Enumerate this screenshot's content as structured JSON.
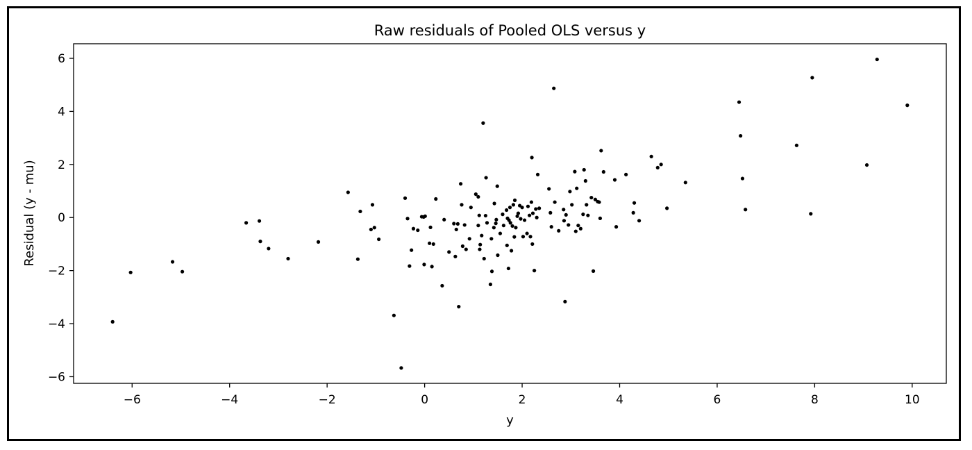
{
  "chart_data": {
    "type": "scatter",
    "title": "Raw residuals of Pooled OLS versus y",
    "xlabel": "y",
    "ylabel": "Residual (y - mu)",
    "xlim": [
      -7.2,
      10.7
    ],
    "ylim": [
      -6.25,
      6.55
    ],
    "xticks": [
      -6,
      -4,
      -2,
      0,
      2,
      4,
      6,
      8,
      10
    ],
    "xtick_labels": [
      "−6",
      "−4",
      "−2",
      "0",
      "2",
      "4",
      "6",
      "8",
      "10"
    ],
    "yticks": [
      -6,
      -4,
      -2,
      0,
      2,
      4,
      6
    ],
    "ytick_labels": [
      "−6",
      "−4",
      "−2",
      "0",
      "2",
      "4",
      "6"
    ],
    "grid": false,
    "marker_color": "#000000",
    "points": [
      [
        -6.4,
        -3.93
      ],
      [
        -6.03,
        -2.07
      ],
      [
        -5.17,
        -1.67
      ],
      [
        -4.97,
        -2.04
      ],
      [
        -3.66,
        -0.2
      ],
      [
        -3.39,
        -0.13
      ],
      [
        -3.37,
        -0.9
      ],
      [
        -3.2,
        -1.17
      ],
      [
        -2.8,
        -1.55
      ],
      [
        -2.18,
        -0.92
      ],
      [
        -1.57,
        0.95
      ],
      [
        -1.37,
        -1.57
      ],
      [
        -1.32,
        0.23
      ],
      [
        -1.07,
        0.48
      ],
      [
        -1.1,
        -0.45
      ],
      [
        -1.03,
        -0.38
      ],
      [
        -0.94,
        -0.82
      ],
      [
        -0.63,
        -3.69
      ],
      [
        -0.48,
        -5.67
      ],
      [
        -0.4,
        0.73
      ],
      [
        -0.35,
        -0.04
      ],
      [
        -0.31,
        -1.83
      ],
      [
        -0.27,
        -1.23
      ],
      [
        -0.23,
        -0.42
      ],
      [
        -0.14,
        -0.48
      ],
      [
        -0.06,
        0.03
      ],
      [
        -0.02,
        0.02
      ],
      [
        0.01,
        0.05
      ],
      [
        -0.01,
        -1.77
      ],
      [
        0.1,
        -0.97
      ],
      [
        0.15,
        -1.85
      ],
      [
        0.12,
        -0.37
      ],
      [
        0.18,
        -1.0
      ],
      [
        0.23,
        0.7
      ],
      [
        0.36,
        -2.57
      ],
      [
        0.4,
        -0.08
      ],
      [
        0.5,
        -1.3
      ],
      [
        0.6,
        -0.23
      ],
      [
        0.63,
        -1.47
      ],
      [
        0.65,
        -0.45
      ],
      [
        0.68,
        -0.24
      ],
      [
        0.7,
        -3.36
      ],
      [
        0.74,
        1.27
      ],
      [
        0.76,
        0.48
      ],
      [
        0.78,
        -1.08
      ],
      [
        0.82,
        -0.28
      ],
      [
        0.85,
        -1.2
      ],
      [
        0.92,
        -0.8
      ],
      [
        0.95,
        0.38
      ],
      [
        1.05,
        0.88
      ],
      [
        1.1,
        0.78
      ],
      [
        1.1,
        -0.3
      ],
      [
        1.12,
        0.08
      ],
      [
        1.13,
        -1.2
      ],
      [
        1.14,
        -1.02
      ],
      [
        1.17,
        -0.68
      ],
      [
        1.2,
        3.56
      ],
      [
        1.22,
        -1.55
      ],
      [
        1.25,
        0.07
      ],
      [
        1.26,
        1.5
      ],
      [
        1.28,
        -0.2
      ],
      [
        1.35,
        -2.52
      ],
      [
        1.37,
        -0.8
      ],
      [
        1.38,
        -2.03
      ],
      [
        1.42,
        -0.38
      ],
      [
        1.43,
        0.53
      ],
      [
        1.46,
        -0.22
      ],
      [
        1.47,
        -0.08
      ],
      [
        1.49,
        1.18
      ],
      [
        1.5,
        -1.42
      ],
      [
        1.55,
        -0.6
      ],
      [
        1.6,
        0.12
      ],
      [
        1.62,
        -0.3
      ],
      [
        1.68,
        0.28
      ],
      [
        1.69,
        -1.05
      ],
      [
        1.7,
        -0.03
      ],
      [
        1.72,
        -1.92
      ],
      [
        1.73,
        -0.1
      ],
      [
        1.75,
        0.38
      ],
      [
        1.76,
        -0.2
      ],
      [
        1.78,
        -1.25
      ],
      [
        1.8,
        -0.32
      ],
      [
        1.82,
        0.48
      ],
      [
        1.84,
        -0.73
      ],
      [
        1.85,
        0.65
      ],
      [
        1.87,
        -0.38
      ],
      [
        1.9,
        0.05
      ],
      [
        1.92,
        0.16
      ],
      [
        1.95,
        0.45
      ],
      [
        1.97,
        -0.05
      ],
      [
        2.0,
        0.38
      ],
      [
        2.02,
        -0.72
      ],
      [
        2.05,
        -0.1
      ],
      [
        2.1,
        -0.6
      ],
      [
        2.12,
        0.42
      ],
      [
        2.15,
        0.08
      ],
      [
        2.17,
        -0.72
      ],
      [
        2.19,
        0.58
      ],
      [
        2.2,
        2.26
      ],
      [
        2.21,
        -1.0
      ],
      [
        2.22,
        0.16
      ],
      [
        2.25,
        -2.0
      ],
      [
        2.28,
        0.32
      ],
      [
        2.3,
        0.0
      ],
      [
        2.32,
        1.62
      ],
      [
        2.35,
        0.35
      ],
      [
        2.55,
        1.08
      ],
      [
        2.58,
        0.18
      ],
      [
        2.6,
        -0.35
      ],
      [
        2.65,
        4.87
      ],
      [
        2.67,
        0.58
      ],
      [
        2.75,
        -0.5
      ],
      [
        2.85,
        0.3
      ],
      [
        2.86,
        -0.12
      ],
      [
        2.88,
        -3.17
      ],
      [
        2.9,
        0.1
      ],
      [
        2.95,
        -0.28
      ],
      [
        2.98,
        0.98
      ],
      [
        3.02,
        0.48
      ],
      [
        3.08,
        1.73
      ],
      [
        3.1,
        -0.52
      ],
      [
        3.12,
        1.1
      ],
      [
        3.15,
        -0.3
      ],
      [
        3.2,
        -0.42
      ],
      [
        3.25,
        0.12
      ],
      [
        3.27,
        1.8
      ],
      [
        3.3,
        1.38
      ],
      [
        3.32,
        0.48
      ],
      [
        3.35,
        0.08
      ],
      [
        3.42,
        0.75
      ],
      [
        3.46,
        -2.02
      ],
      [
        3.5,
        0.68
      ],
      [
        3.55,
        0.6
      ],
      [
        3.58,
        0.58
      ],
      [
        3.6,
        -0.03
      ],
      [
        3.62,
        2.52
      ],
      [
        3.67,
        1.72
      ],
      [
        3.9,
        1.42
      ],
      [
        3.93,
        -0.35
      ],
      [
        4.13,
        1.62
      ],
      [
        4.28,
        0.18
      ],
      [
        4.3,
        0.55
      ],
      [
        4.4,
        -0.12
      ],
      [
        4.65,
        2.3
      ],
      [
        4.78,
        1.88
      ],
      [
        4.85,
        2.0
      ],
      [
        4.97,
        0.35
      ],
      [
        5.35,
        1.32
      ],
      [
        6.45,
        4.35
      ],
      [
        6.48,
        3.08
      ],
      [
        6.52,
        1.47
      ],
      [
        6.58,
        0.3
      ],
      [
        7.63,
        2.72
      ],
      [
        7.92,
        0.14
      ],
      [
        7.95,
        5.27
      ],
      [
        9.07,
        1.98
      ],
      [
        9.28,
        5.96
      ],
      [
        9.9,
        4.23
      ]
    ]
  }
}
